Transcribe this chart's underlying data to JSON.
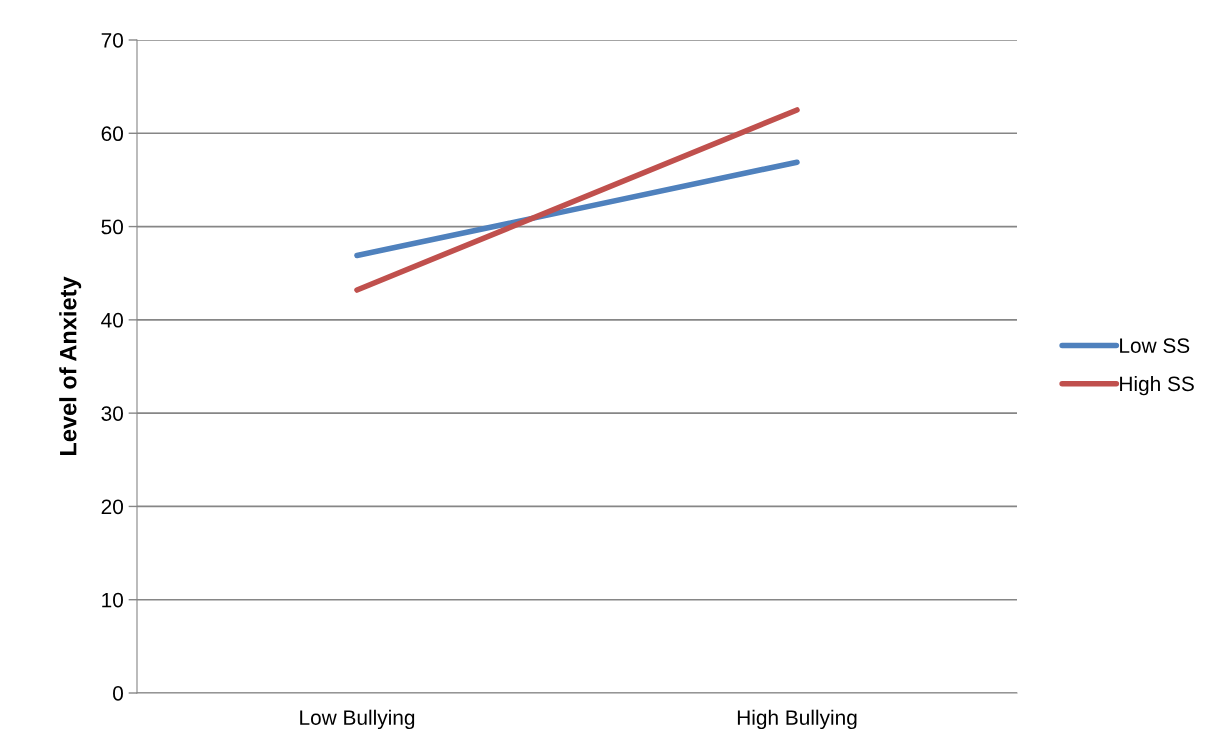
{
  "chart_data": {
    "type": "line",
    "ylabel": "Level of Anxiety",
    "categories": [
      "Low Bullying",
      "High Bullying"
    ],
    "series": [
      {
        "name": "Low SS",
        "color": "#4f81bd",
        "values": [
          46.9,
          56.9
        ]
      },
      {
        "name": "High SS",
        "color": "#c0504d",
        "values": [
          43.2,
          62.5
        ]
      }
    ],
    "ylim": [
      0,
      70
    ],
    "yticks": [
      0,
      10,
      20,
      30,
      40,
      50,
      60,
      70
    ],
    "grid": "y",
    "legend": "right",
    "marker": "none",
    "line_style": "solid"
  }
}
